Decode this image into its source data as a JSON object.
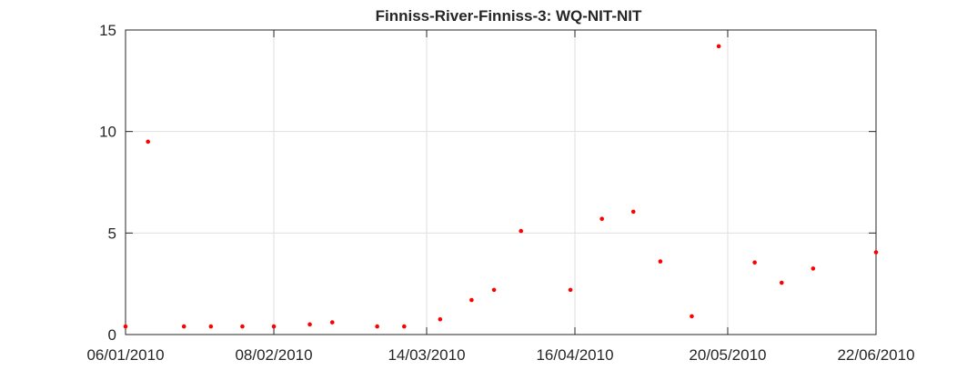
{
  "chart_data": {
    "type": "scatter",
    "title": "Finniss-River-Finniss-3: WQ-NIT-NIT",
    "xlabel": "",
    "ylabel": "",
    "x_tick_labels": [
      "06/01/2010",
      "08/02/2010",
      "14/03/2010",
      "16/04/2010",
      "20/05/2010",
      "22/06/2010"
    ],
    "xlim": [
      "06/01/2010",
      "22/06/2010"
    ],
    "ylim": [
      0,
      15
    ],
    "y_ticks": [
      0,
      5,
      10,
      15
    ],
    "grid": true,
    "marker_color": "#ff0000",
    "points": [
      {
        "date": "06/01/2010",
        "value": 0.4
      },
      {
        "date": "11/01/2010",
        "value": 9.5
      },
      {
        "date": "19/01/2010",
        "value": 0.4
      },
      {
        "date": "25/01/2010",
        "value": 0.4
      },
      {
        "date": "01/02/2010",
        "value": 0.4
      },
      {
        "date": "08/02/2010",
        "value": 0.4
      },
      {
        "date": "16/02/2010",
        "value": 0.5
      },
      {
        "date": "21/02/2010",
        "value": 0.6
      },
      {
        "date": "03/03/2010",
        "value": 0.4
      },
      {
        "date": "09/03/2010",
        "value": 0.4
      },
      {
        "date": "17/03/2010",
        "value": 0.75
      },
      {
        "date": "24/03/2010",
        "value": 1.7
      },
      {
        "date": "29/03/2010",
        "value": 2.2
      },
      {
        "date": "04/04/2010",
        "value": 5.1
      },
      {
        "date": "15/04/2010",
        "value": 2.2
      },
      {
        "date": "22/04/2010",
        "value": 5.7
      },
      {
        "date": "29/04/2010",
        "value": 6.05
      },
      {
        "date": "05/05/2010",
        "value": 3.6
      },
      {
        "date": "12/05/2010",
        "value": 0.9
      },
      {
        "date": "18/05/2010",
        "value": 14.2
      },
      {
        "date": "26/05/2010",
        "value": 3.55
      },
      {
        "date": "01/06/2010",
        "value": 2.55
      },
      {
        "date": "08/06/2010",
        "value": 3.25
      },
      {
        "date": "22/06/2010",
        "value": 4.05
      }
    ]
  }
}
